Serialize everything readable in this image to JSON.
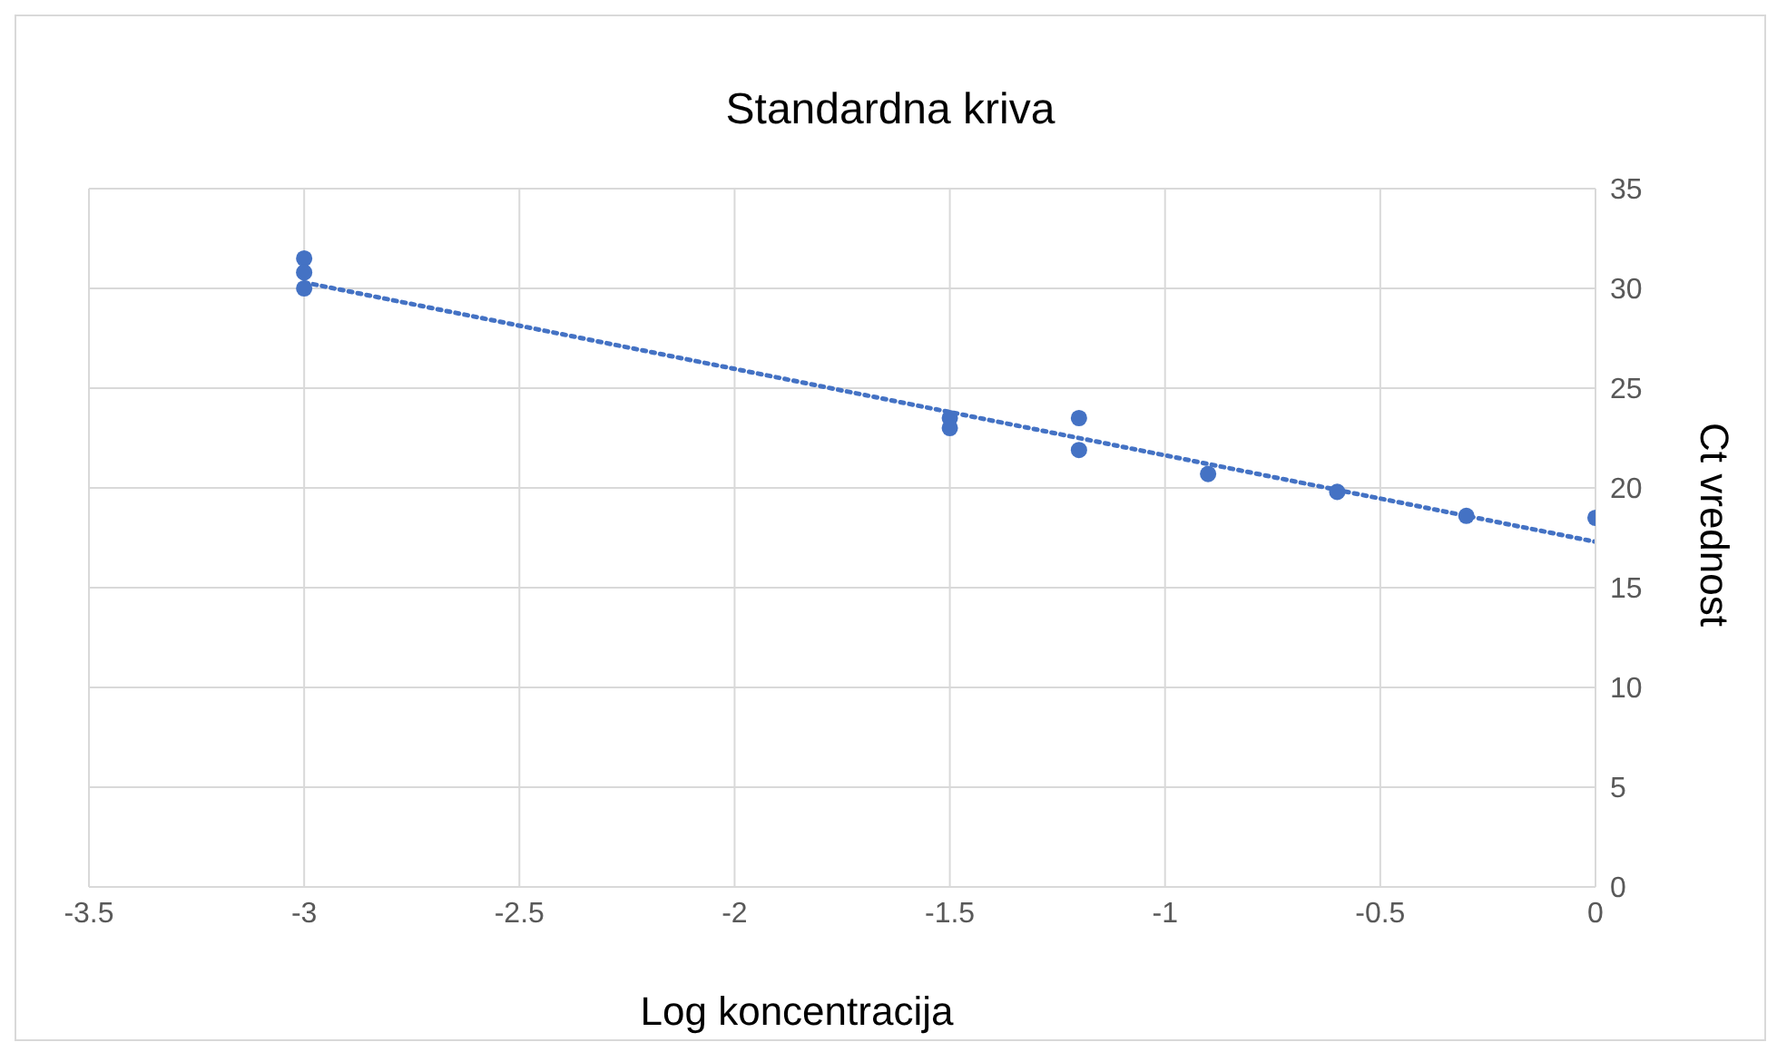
{
  "chart_data": {
    "type": "scatter",
    "title": "Standardna kriva",
    "xlabel": "Log koncentracija",
    "ylabel": "Ct vrednost",
    "xlim": [
      -3.5,
      0
    ],
    "xticks": [
      -3.5,
      -3,
      -2.5,
      -2,
      -1.5,
      -1,
      -0.5,
      0
    ],
    "ylim": [
      0,
      35
    ],
    "yticks": [
      0,
      5,
      10,
      15,
      20,
      25,
      30,
      35
    ],
    "grid": true,
    "legend": false,
    "series": [
      {
        "type": "scatter",
        "color": "#4472c4",
        "marker": "circle",
        "x": [
          -3,
          -3,
          -3,
          -1.5,
          -1.5,
          -1.2,
          -1.2,
          -0.9,
          -0.6,
          -0.3,
          0
        ],
        "values": [
          31.5,
          30.8,
          30.0,
          23.5,
          23.0,
          23.5,
          21.9,
          20.7,
          19.8,
          18.6,
          18.5
        ]
      },
      {
        "type": "line",
        "color": "#4472c4",
        "marker": "none",
        "line_style": "dotted",
        "x": [
          -3,
          0
        ],
        "values": [
          30.3,
          17.3
        ]
      }
    ]
  }
}
